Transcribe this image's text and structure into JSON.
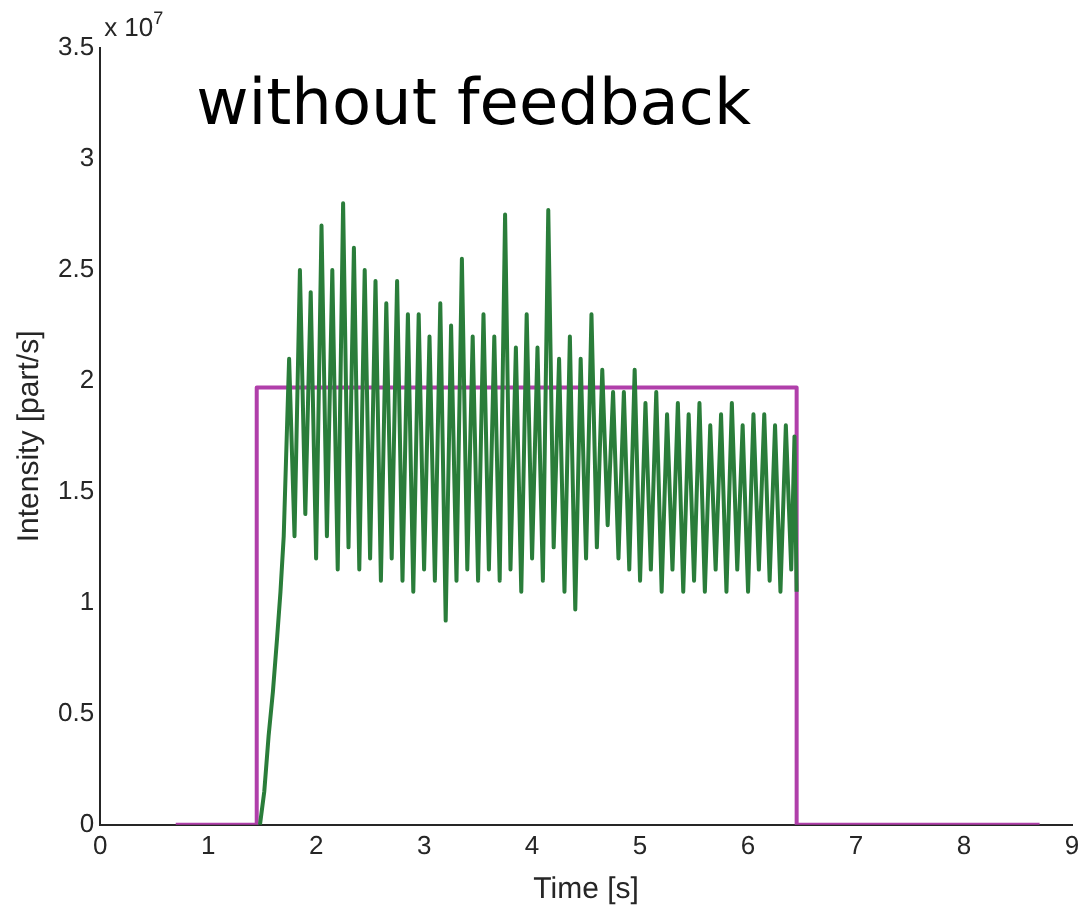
{
  "chart_data": {
    "type": "line",
    "title": "without feedback",
    "xlabel": "Time [s]",
    "ylabel": "Intensity [part/s]",
    "annotations": [
      "x 10$^{7}$"
    ],
    "xlim": [
      0,
      9
    ],
    "xticks": [
      0,
      1,
      2,
      3,
      4,
      5,
      6,
      7,
      8,
      9
    ],
    "ylim": [
      0,
      3.5
    ],
    "yticks": [
      0,
      0.5,
      1,
      1.5,
      2,
      2.5,
      3,
      3.5
    ],
    "marker": "none",
    "line_style": "solid",
    "series": [
      {
        "color": "#2a7d3a",
        "x": [
          1.48,
          1.52,
          1.56,
          1.6,
          1.64,
          1.67,
          1.7,
          1.75,
          1.8,
          1.85,
          1.9,
          1.95,
          2.0,
          2.05,
          2.1,
          2.15,
          2.2,
          2.25,
          2.3,
          2.35,
          2.4,
          2.45,
          2.5,
          2.55,
          2.6,
          2.65,
          2.7,
          2.75,
          2.8,
          2.85,
          2.9,
          2.95,
          3.0,
          3.05,
          3.1,
          3.15,
          3.2,
          3.25,
          3.3,
          3.35,
          3.4,
          3.45,
          3.5,
          3.55,
          3.6,
          3.65,
          3.7,
          3.75,
          3.8,
          3.85,
          3.9,
          3.95,
          4.0,
          4.05,
          4.1,
          4.15,
          4.2,
          4.25,
          4.3,
          4.35,
          4.4,
          4.45,
          4.5,
          4.55,
          4.6,
          4.65,
          4.7,
          4.75,
          4.8,
          4.85,
          4.9,
          4.95,
          5.0,
          5.05,
          5.1,
          5.15,
          5.2,
          5.25,
          5.3,
          5.35,
          5.4,
          5.45,
          5.5,
          5.55,
          5.6,
          5.65,
          5.7,
          5.75,
          5.8,
          5.85,
          5.9,
          5.95,
          6.0,
          6.05,
          6.1,
          6.15,
          6.2,
          6.25,
          6.3,
          6.35,
          6.4,
          6.43,
          6.45
        ],
        "values": [
          0,
          0.15,
          0.4,
          0.6,
          0.85,
          1.05,
          1.3,
          2.1,
          1.3,
          2.5,
          1.4,
          2.4,
          1.2,
          2.7,
          1.3,
          2.5,
          1.15,
          2.8,
          1.25,
          2.6,
          1.15,
          2.5,
          1.2,
          2.45,
          1.1,
          2.35,
          1.2,
          2.45,
          1.1,
          2.3,
          1.05,
          2.3,
          1.15,
          2.2,
          1.1,
          2.35,
          0.92,
          2.25,
          1.1,
          2.55,
          1.15,
          2.2,
          1.1,
          2.3,
          1.15,
          2.2,
          1.1,
          2.75,
          1.15,
          2.15,
          1.05,
          2.3,
          1.2,
          2.15,
          1.1,
          2.77,
          1.25,
          2.1,
          1.05,
          2.2,
          0.97,
          2.1,
          1.2,
          2.3,
          1.25,
          2.05,
          1.35,
          1.95,
          1.2,
          1.95,
          1.15,
          2.05,
          1.1,
          1.9,
          1.15,
          1.95,
          1.05,
          1.85,
          1.15,
          1.9,
          1.05,
          1.85,
          1.1,
          1.9,
          1.05,
          1.8,
          1.15,
          1.85,
          1.05,
          1.9,
          1.15,
          1.8,
          1.05,
          1.85,
          1.15,
          1.85,
          1.1,
          1.8,
          1.05,
          1.8,
          1.15,
          1.75,
          1.05
        ]
      },
      {
        "color": "#b03faa",
        "x": [
          0.7,
          1.45,
          1.45,
          6.45,
          6.45,
          8.7
        ],
        "values": [
          0,
          0,
          1.97,
          1.97,
          0,
          0
        ]
      }
    ]
  }
}
